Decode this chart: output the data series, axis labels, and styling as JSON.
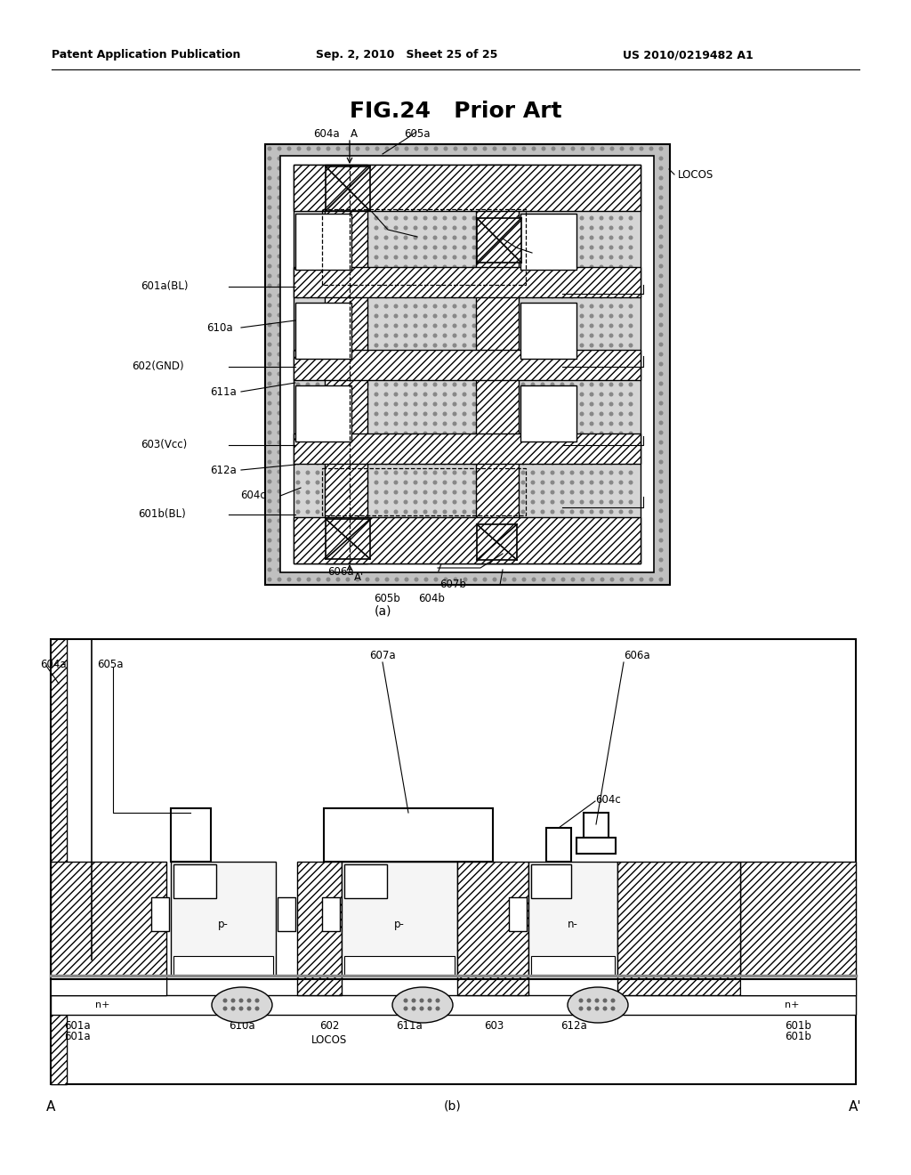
{
  "title": "FIG.24   Prior Art",
  "header_left": "Patent Application Publication",
  "header_mid": "Sep. 2, 2010   Sheet 25 of 25",
  "header_right": "US 2010/0219482 A1",
  "bg_color": "#ffffff"
}
